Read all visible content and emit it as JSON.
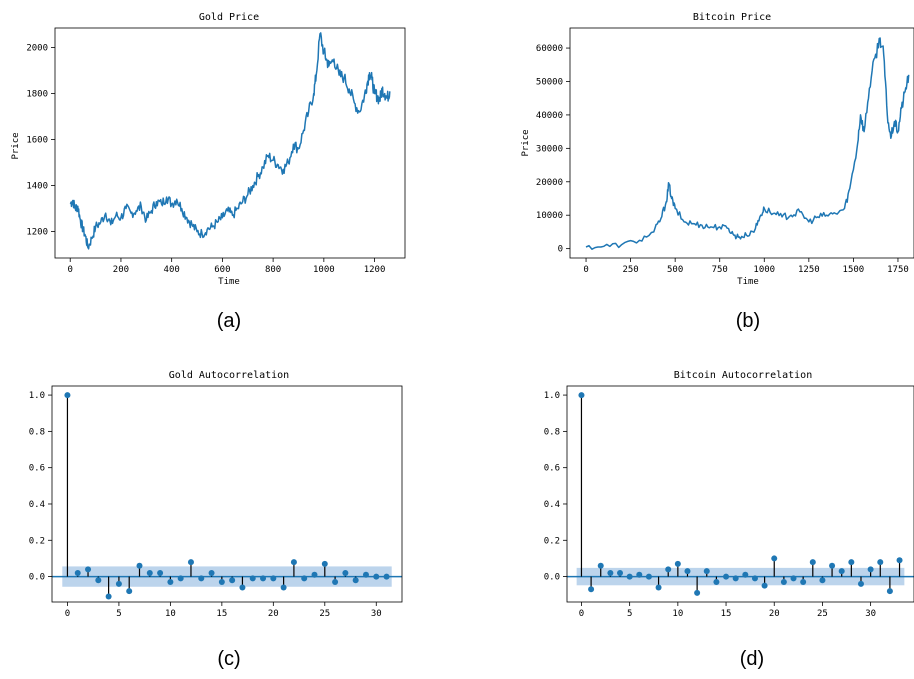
{
  "colors": {
    "series": "#1f77b4",
    "band": "#a6c6e6",
    "stem": "#000000"
  },
  "chart_data": [
    {
      "id": "a",
      "type": "line",
      "title": "Gold Price",
      "xlabel": "Time",
      "ylabel": "Price",
      "caption": "(a)",
      "xlim": [
        -60,
        1320
      ],
      "ylim": [
        1085,
        2085
      ],
      "xticks": [
        0,
        200,
        400,
        600,
        800,
        1000,
        1200
      ],
      "yticks": [
        1200,
        1400,
        1600,
        1800,
        2000
      ],
      "anchors": [
        [
          0,
          1320
        ],
        [
          10,
          1335
        ],
        [
          20,
          1300
        ],
        [
          30,
          1310
        ],
        [
          40,
          1250
        ],
        [
          50,
          1210
        ],
        [
          60,
          1180
        ],
        [
          70,
          1130
        ],
        [
          85,
          1170
        ],
        [
          100,
          1220
        ],
        [
          120,
          1240
        ],
        [
          140,
          1280
        ],
        [
          160,
          1230
        ],
        [
          180,
          1270
        ],
        [
          200,
          1260
        ],
        [
          220,
          1300
        ],
        [
          240,
          1280
        ],
        [
          260,
          1290
        ],
        [
          280,
          1310
        ],
        [
          300,
          1250
        ],
        [
          320,
          1290
        ],
        [
          340,
          1330
        ],
        [
          360,
          1320
        ],
        [
          380,
          1350
        ],
        [
          400,
          1320
        ],
        [
          420,
          1340
        ],
        [
          440,
          1300
        ],
        [
          460,
          1260
        ],
        [
          480,
          1230
        ],
        [
          500,
          1200
        ],
        [
          520,
          1190
        ],
        [
          540,
          1210
        ],
        [
          560,
          1220
        ],
        [
          580,
          1240
        ],
        [
          600,
          1260
        ],
        [
          620,
          1290
        ],
        [
          640,
          1270
        ],
        [
          660,
          1300
        ],
        [
          680,
          1330
        ],
        [
          700,
          1360
        ],
        [
          720,
          1400
        ],
        [
          740,
          1440
        ],
        [
          760,
          1480
        ],
        [
          780,
          1530
        ],
        [
          800,
          1510
        ],
        [
          820,
          1490
        ],
        [
          840,
          1470
        ],
        [
          860,
          1500
        ],
        [
          880,
          1580
        ],
        [
          900,
          1560
        ],
        [
          920,
          1640
        ],
        [
          940,
          1720
        ],
        [
          960,
          1800
        ],
        [
          970,
          1880
        ],
        [
          985,
          2060
        ],
        [
          1000,
          1980
        ],
        [
          1010,
          1950
        ],
        [
          1020,
          1920
        ],
        [
          1040,
          1950
        ],
        [
          1060,
          1880
        ],
        [
          1080,
          1870
        ],
        [
          1100,
          1820
        ],
        [
          1120,
          1760
        ],
        [
          1140,
          1720
        ],
        [
          1160,
          1790
        ],
        [
          1170,
          1840
        ],
        [
          1180,
          1890
        ],
        [
          1190,
          1860
        ],
        [
          1200,
          1800
        ],
        [
          1210,
          1790
        ],
        [
          1220,
          1770
        ],
        [
          1230,
          1820
        ],
        [
          1240,
          1800
        ],
        [
          1250,
          1780
        ],
        [
          1260,
          1810
        ]
      ]
    },
    {
      "id": "b",
      "type": "line",
      "title": "Bitcoin Price",
      "xlabel": "Time",
      "ylabel": "Price",
      "caption": "(b)",
      "xlim": [
        -90,
        1840
      ],
      "ylim": [
        -2800,
        66000
      ],
      "xticks": [
        0,
        250,
        500,
        750,
        1000,
        1250,
        1500,
        1750
      ],
      "yticks": [
        0,
        10000,
        20000,
        30000,
        40000,
        50000,
        60000
      ],
      "anchors": [
        [
          0,
          500
        ],
        [
          100,
          700
        ],
        [
          200,
          1200
        ],
        [
          300,
          2500
        ],
        [
          380,
          5000
        ],
        [
          420,
          9000
        ],
        [
          450,
          14000
        ],
        [
          465,
          19500
        ],
        [
          480,
          15000
        ],
        [
          500,
          12000
        ],
        [
          550,
          8000
        ],
        [
          600,
          7500
        ],
        [
          650,
          7000
        ],
        [
          700,
          6500
        ],
        [
          750,
          6500
        ],
        [
          800,
          6000
        ],
        [
          830,
          4000
        ],
        [
          860,
          3500
        ],
        [
          900,
          4000
        ],
        [
          950,
          6000
        ],
        [
          980,
          10000
        ],
        [
          1000,
          12000
        ],
        [
          1050,
          10500
        ],
        [
          1100,
          9500
        ],
        [
          1150,
          10000
        ],
        [
          1200,
          11000
        ],
        [
          1250,
          8000
        ],
        [
          1300,
          9500
        ],
        [
          1350,
          10000
        ],
        [
          1400,
          10500
        ],
        [
          1450,
          12000
        ],
        [
          1480,
          18000
        ],
        [
          1520,
          30000
        ],
        [
          1540,
          40000
        ],
        [
          1560,
          35000
        ],
        [
          1590,
          48000
        ],
        [
          1620,
          57000
        ],
        [
          1650,
          63000
        ],
        [
          1670,
          58000
        ],
        [
          1690,
          40000
        ],
        [
          1710,
          33000
        ],
        [
          1730,
          38000
        ],
        [
          1750,
          35000
        ],
        [
          1770,
          42000
        ],
        [
          1790,
          47000
        ],
        [
          1810,
          52000
        ]
      ]
    },
    {
      "id": "c",
      "type": "stem",
      "title": "Gold Autocorrelation",
      "caption": "(c)",
      "xlim": [
        -1.5,
        32.5
      ],
      "ylim": [
        -0.14,
        1.05
      ],
      "xticks": [
        0,
        5,
        10,
        15,
        20,
        25,
        30
      ],
      "yticks": [
        0.0,
        0.2,
        0.4,
        0.6,
        0.8,
        1.0
      ],
      "band_x": [
        0,
        31
      ],
      "band": 0.056,
      "lags": [
        0,
        1,
        2,
        3,
        4,
        5,
        6,
        7,
        8,
        9,
        10,
        11,
        12,
        13,
        14,
        15,
        16,
        17,
        18,
        19,
        20,
        21,
        22,
        23,
        24,
        25,
        26,
        27,
        28,
        29,
        30,
        31
      ],
      "values": [
        1.0,
        0.02,
        0.04,
        -0.02,
        -0.11,
        -0.04,
        -0.08,
        0.06,
        0.02,
        0.02,
        -0.03,
        -0.01,
        0.08,
        -0.01,
        0.02,
        -0.03,
        -0.02,
        -0.06,
        -0.01,
        -0.01,
        -0.01,
        -0.06,
        0.08,
        -0.01,
        0.01,
        0.07,
        -0.03,
        0.02,
        -0.02,
        0.01,
        0.0,
        0.0
      ]
    },
    {
      "id": "d",
      "type": "stem",
      "title": "Bitcoin Autocorrelation",
      "caption": "(d)",
      "xlim": [
        -1.5,
        34.5
      ],
      "ylim": [
        -0.14,
        1.05
      ],
      "xticks": [
        0,
        5,
        10,
        15,
        20,
        25,
        30
      ],
      "yticks": [
        0.0,
        0.2,
        0.4,
        0.6,
        0.8,
        1.0
      ],
      "band_x": [
        0,
        33
      ],
      "band": 0.048,
      "lags": [
        0,
        1,
        2,
        3,
        4,
        5,
        6,
        7,
        8,
        9,
        10,
        11,
        12,
        13,
        14,
        15,
        16,
        17,
        18,
        19,
        20,
        21,
        22,
        23,
        24,
        25,
        26,
        27,
        28,
        29,
        30,
        31,
        32,
        33
      ],
      "values": [
        1.0,
        -0.07,
        0.06,
        0.02,
        0.02,
        0.0,
        0.01,
        0.0,
        -0.06,
        0.04,
        0.07,
        0.03,
        -0.09,
        0.03,
        -0.03,
        0.0,
        -0.01,
        0.01,
        -0.01,
        -0.05,
        0.1,
        -0.03,
        -0.01,
        -0.03,
        0.08,
        -0.02,
        0.06,
        0.03,
        0.08,
        -0.04,
        0.04,
        0.08,
        -0.08,
        0.09
      ]
    }
  ]
}
